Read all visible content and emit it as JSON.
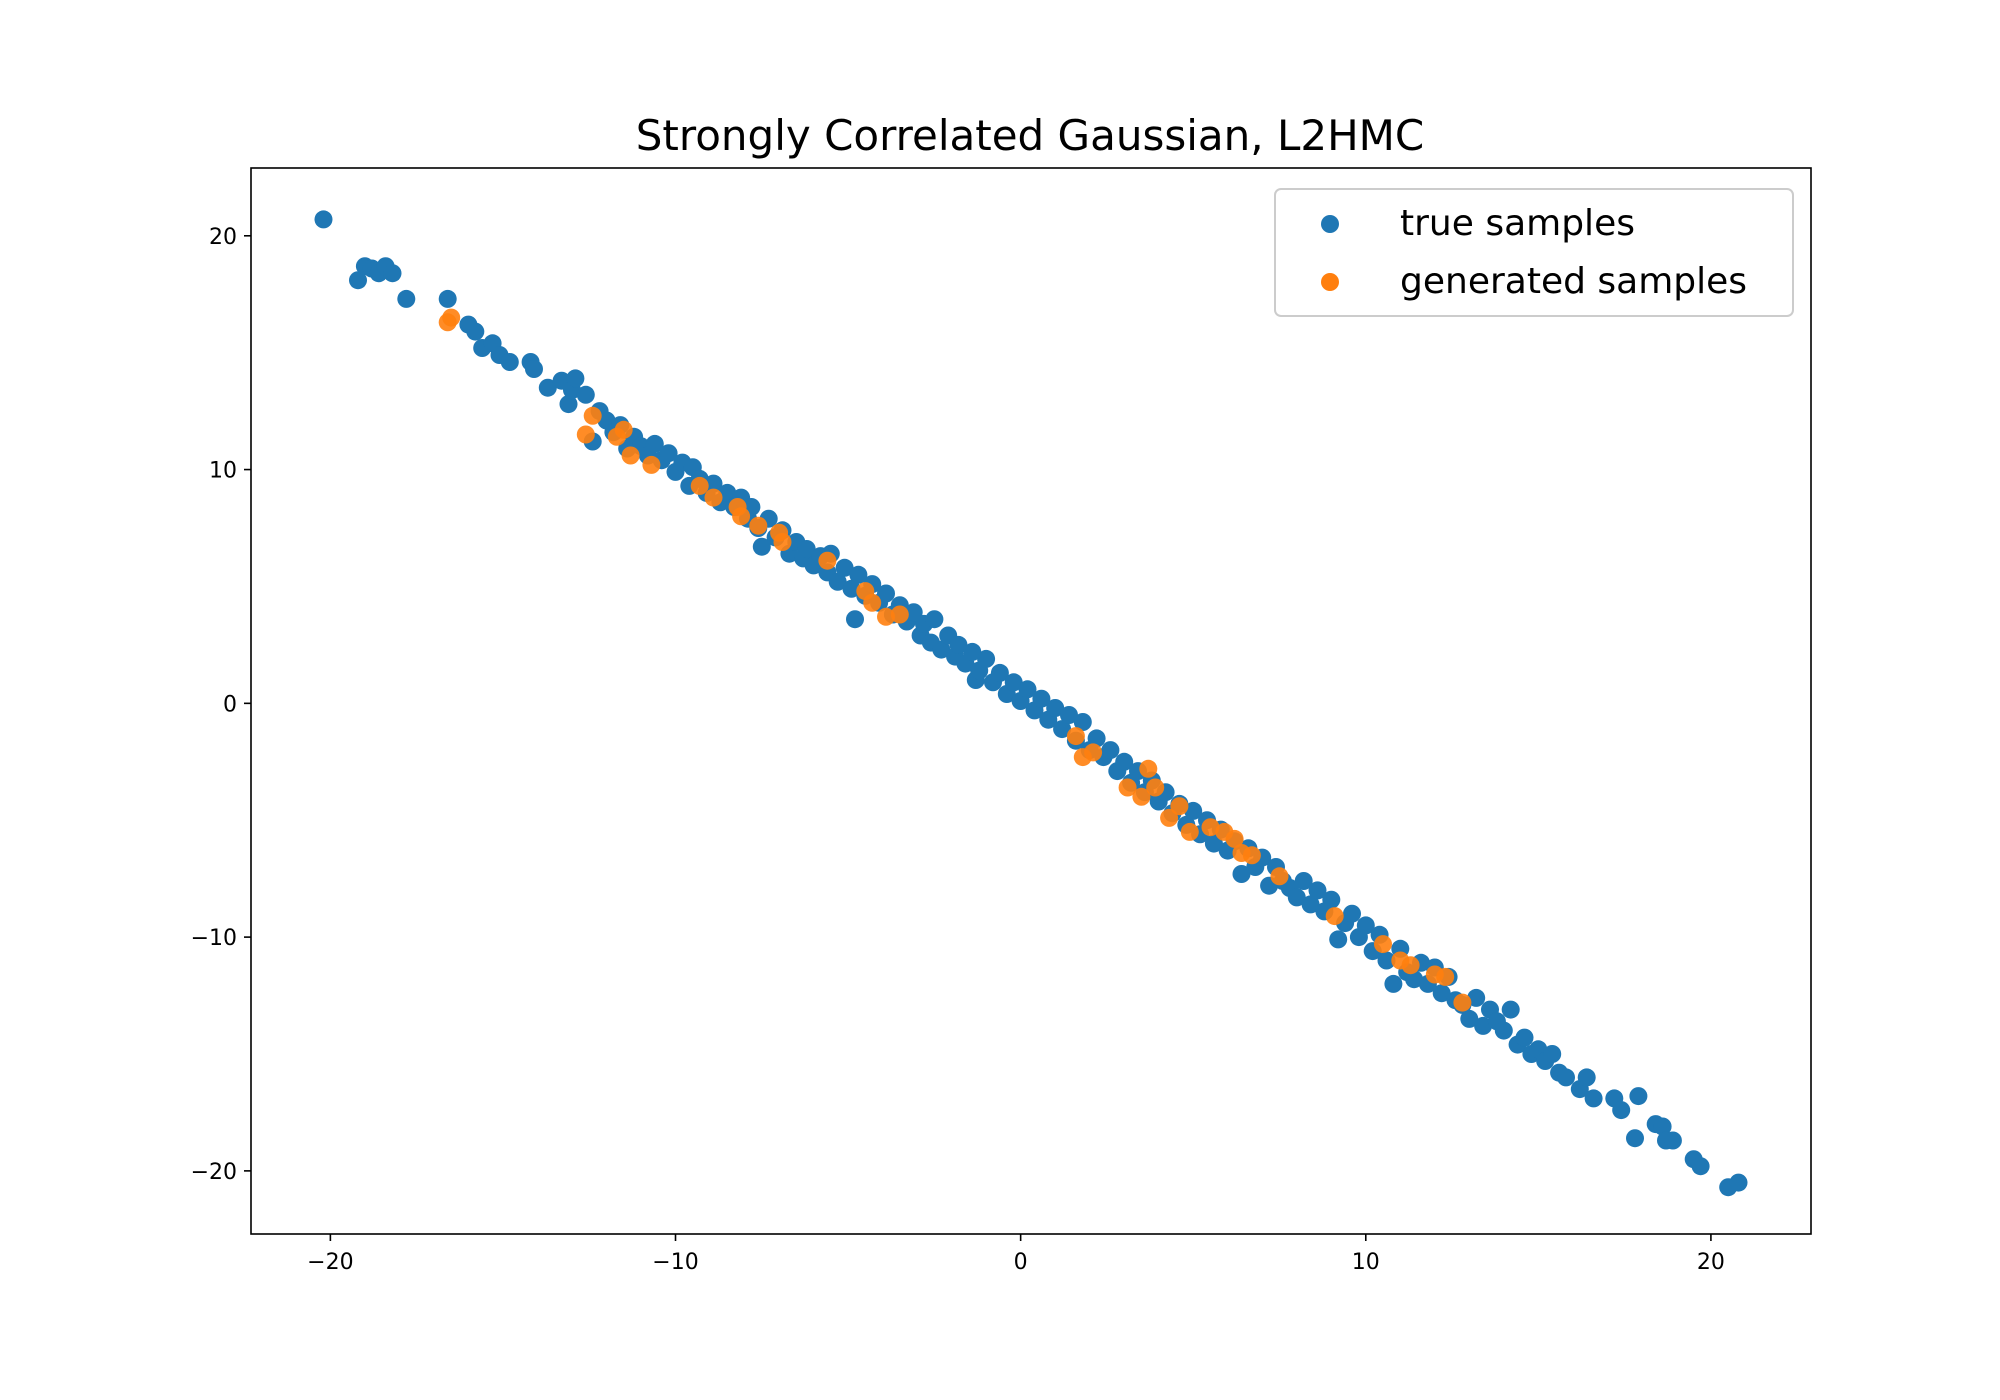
{
  "chart_data": {
    "type": "scatter",
    "title": "Strongly Correlated Gaussian, L2HMC",
    "xlabel": "",
    "ylabel": "",
    "xlim": [
      -22.3,
      22.9
    ],
    "ylim": [
      -22.7,
      22.9
    ],
    "xticks": [
      -20,
      -10,
      0,
      10,
      20
    ],
    "yticks": [
      -20,
      -10,
      0,
      10,
      20
    ],
    "xtick_labels": [
      "−20",
      "−10",
      "0",
      "10",
      "20"
    ],
    "ytick_labels": [
      "−20",
      "−10",
      "0",
      "10",
      "20"
    ],
    "grid": false,
    "legend_position": "top-right",
    "series": [
      {
        "name": "true samples",
        "color": "#1f77b4",
        "points": [
          [
            -20.2,
            20.7
          ],
          [
            -19.2,
            18.1
          ],
          [
            -19.0,
            18.7
          ],
          [
            -18.8,
            18.6
          ],
          [
            -18.6,
            18.4
          ],
          [
            -18.4,
            18.7
          ],
          [
            -18.2,
            18.4
          ],
          [
            -17.8,
            17.3
          ],
          [
            -16.6,
            17.3
          ],
          [
            -16.0,
            16.2
          ],
          [
            -15.8,
            15.9
          ],
          [
            -15.6,
            15.2
          ],
          [
            -15.3,
            15.4
          ],
          [
            -15.1,
            14.9
          ],
          [
            -14.8,
            14.6
          ],
          [
            -14.2,
            14.6
          ],
          [
            -14.1,
            14.3
          ],
          [
            -13.7,
            13.5
          ],
          [
            -13.3,
            13.8
          ],
          [
            -13.1,
            12.8
          ],
          [
            -13.0,
            13.4
          ],
          [
            -12.9,
            13.9
          ],
          [
            -12.6,
            13.2
          ],
          [
            -12.4,
            11.2
          ],
          [
            -12.2,
            12.5
          ],
          [
            -12.0,
            12.1
          ],
          [
            -11.8,
            11.6
          ],
          [
            -11.6,
            11.9
          ],
          [
            -11.4,
            10.9
          ],
          [
            -11.2,
            11.4
          ],
          [
            -11.0,
            11.0
          ],
          [
            -10.8,
            10.6
          ],
          [
            -10.6,
            11.1
          ],
          [
            -10.4,
            10.4
          ],
          [
            -10.2,
            10.7
          ],
          [
            -10.0,
            9.9
          ],
          [
            -9.8,
            10.3
          ],
          [
            -9.6,
            9.3
          ],
          [
            -9.5,
            10.1
          ],
          [
            -9.3,
            9.6
          ],
          [
            -9.1,
            9.0
          ],
          [
            -8.9,
            9.4
          ],
          [
            -8.7,
            8.6
          ],
          [
            -8.5,
            9.0
          ],
          [
            -8.3,
            8.4
          ],
          [
            -8.1,
            8.8
          ],
          [
            -7.9,
            7.9
          ],
          [
            -7.8,
            8.4
          ],
          [
            -7.6,
            7.5
          ],
          [
            -7.5,
            6.7
          ],
          [
            -7.3,
            7.9
          ],
          [
            -7.1,
            7.1
          ],
          [
            -6.9,
            7.4
          ],
          [
            -6.7,
            6.4
          ],
          [
            -6.5,
            6.9
          ],
          [
            -6.3,
            6.2
          ],
          [
            -6.2,
            6.6
          ],
          [
            -6.0,
            5.9
          ],
          [
            -5.8,
            6.3
          ],
          [
            -5.6,
            5.6
          ],
          [
            -5.5,
            6.4
          ],
          [
            -5.3,
            5.2
          ],
          [
            -5.1,
            5.8
          ],
          [
            -4.9,
            4.9
          ],
          [
            -4.8,
            3.6
          ],
          [
            -4.7,
            5.5
          ],
          [
            -4.5,
            4.6
          ],
          [
            -4.3,
            5.1
          ],
          [
            -4.1,
            4.3
          ],
          [
            -3.9,
            4.7
          ],
          [
            -3.7,
            3.8
          ],
          [
            -3.5,
            4.2
          ],
          [
            -3.3,
            3.5
          ],
          [
            -3.1,
            3.9
          ],
          [
            -2.9,
            2.9
          ],
          [
            -2.8,
            3.4
          ],
          [
            -2.6,
            2.6
          ],
          [
            -2.5,
            3.6
          ],
          [
            -2.3,
            2.3
          ],
          [
            -2.1,
            2.9
          ],
          [
            -1.9,
            2.0
          ],
          [
            -1.8,
            2.5
          ],
          [
            -1.6,
            1.7
          ],
          [
            -1.4,
            2.2
          ],
          [
            -1.3,
            1.0
          ],
          [
            -1.2,
            1.4
          ],
          [
            -1.0,
            1.9
          ],
          [
            -0.8,
            0.9
          ],
          [
            -0.6,
            1.3
          ],
          [
            -0.4,
            0.4
          ],
          [
            -0.2,
            0.9
          ],
          [
            0.0,
            0.1
          ],
          [
            0.2,
            0.6
          ],
          [
            0.4,
            -0.3
          ],
          [
            0.6,
            0.2
          ],
          [
            0.8,
            -0.7
          ],
          [
            1.0,
            -0.2
          ],
          [
            1.2,
            -1.1
          ],
          [
            1.4,
            -0.5
          ],
          [
            1.6,
            -1.6
          ],
          [
            1.8,
            -0.8
          ],
          [
            2.0,
            -2.0
          ],
          [
            2.2,
            -1.5
          ],
          [
            2.4,
            -2.3
          ],
          [
            2.6,
            -2.0
          ],
          [
            2.8,
            -2.9
          ],
          [
            3.0,
            -2.5
          ],
          [
            3.2,
            -3.4
          ],
          [
            3.4,
            -2.9
          ],
          [
            3.6,
            -3.8
          ],
          [
            3.8,
            -3.3
          ],
          [
            4.0,
            -4.2
          ],
          [
            4.2,
            -3.8
          ],
          [
            4.4,
            -4.7
          ],
          [
            4.6,
            -4.3
          ],
          [
            4.8,
            -5.2
          ],
          [
            5.0,
            -4.6
          ],
          [
            5.2,
            -5.6
          ],
          [
            5.4,
            -5.0
          ],
          [
            5.6,
            -6.0
          ],
          [
            5.8,
            -5.4
          ],
          [
            6.0,
            -6.3
          ],
          [
            6.2,
            -5.9
          ],
          [
            6.4,
            -7.3
          ],
          [
            6.6,
            -6.2
          ],
          [
            6.8,
            -7.0
          ],
          [
            7.0,
            -6.6
          ],
          [
            7.2,
            -7.8
          ],
          [
            7.4,
            -7.0
          ],
          [
            7.6,
            -7.6
          ],
          [
            7.8,
            -7.9
          ],
          [
            8.0,
            -8.3
          ],
          [
            8.2,
            -7.6
          ],
          [
            8.4,
            -8.6
          ],
          [
            8.6,
            -8.0
          ],
          [
            8.8,
            -8.9
          ],
          [
            9.0,
            -8.4
          ],
          [
            9.2,
            -10.1
          ],
          [
            9.4,
            -9.4
          ],
          [
            9.6,
            -9.0
          ],
          [
            9.8,
            -10.0
          ],
          [
            10.0,
            -9.5
          ],
          [
            10.2,
            -10.6
          ],
          [
            10.4,
            -9.9
          ],
          [
            10.6,
            -11.0
          ],
          [
            10.8,
            -12.0
          ],
          [
            11.0,
            -10.5
          ],
          [
            11.2,
            -11.5
          ],
          [
            11.4,
            -11.8
          ],
          [
            11.6,
            -11.1
          ],
          [
            11.8,
            -12.0
          ],
          [
            12.0,
            -11.3
          ],
          [
            12.2,
            -12.4
          ],
          [
            12.4,
            -11.7
          ],
          [
            12.6,
            -12.7
          ],
          [
            12.8,
            -12.9
          ],
          [
            13.0,
            -13.5
          ],
          [
            13.2,
            -12.6
          ],
          [
            13.4,
            -13.8
          ],
          [
            13.6,
            -13.1
          ],
          [
            13.8,
            -13.6
          ],
          [
            14.0,
            -14.0
          ],
          [
            14.2,
            -13.1
          ],
          [
            14.4,
            -14.6
          ],
          [
            14.6,
            -14.3
          ],
          [
            14.8,
            -15.0
          ],
          [
            15.0,
            -14.8
          ],
          [
            15.2,
            -15.3
          ],
          [
            15.4,
            -15.0
          ],
          [
            15.6,
            -15.8
          ],
          [
            15.8,
            -16.0
          ],
          [
            16.2,
            -16.5
          ],
          [
            16.4,
            -16.0
          ],
          [
            16.6,
            -16.9
          ],
          [
            17.2,
            -16.9
          ],
          [
            17.4,
            -17.4
          ],
          [
            17.8,
            -18.6
          ],
          [
            17.9,
            -16.8
          ],
          [
            18.4,
            -18.0
          ],
          [
            18.6,
            -18.1
          ],
          [
            18.7,
            -18.7
          ],
          [
            18.9,
            -18.7
          ],
          [
            19.5,
            -19.5
          ],
          [
            19.7,
            -19.8
          ],
          [
            20.5,
            -20.7
          ],
          [
            20.8,
            -20.5
          ]
        ]
      },
      {
        "name": "generated samples",
        "color": "#ff7f0e",
        "points": [
          [
            -16.6,
            16.3
          ],
          [
            -16.5,
            16.5
          ],
          [
            -12.6,
            11.5
          ],
          [
            -12.4,
            12.3
          ],
          [
            -11.7,
            11.4
          ],
          [
            -11.5,
            11.7
          ],
          [
            -11.3,
            10.6
          ],
          [
            -10.7,
            10.2
          ],
          [
            -9.3,
            9.3
          ],
          [
            -8.9,
            8.8
          ],
          [
            -8.2,
            8.4
          ],
          [
            -8.1,
            8.0
          ],
          [
            -7.6,
            7.6
          ],
          [
            -7.0,
            7.3
          ],
          [
            -6.9,
            6.9
          ],
          [
            -5.6,
            6.1
          ],
          [
            -4.5,
            4.8
          ],
          [
            -4.3,
            4.3
          ],
          [
            -3.9,
            3.7
          ],
          [
            -3.5,
            3.8
          ],
          [
            1.6,
            -1.4
          ],
          [
            1.8,
            -2.3
          ],
          [
            2.1,
            -2.1
          ],
          [
            3.1,
            -3.6
          ],
          [
            3.5,
            -4.0
          ],
          [
            3.7,
            -2.8
          ],
          [
            3.9,
            -3.6
          ],
          [
            4.3,
            -4.9
          ],
          [
            4.6,
            -4.4
          ],
          [
            4.9,
            -5.5
          ],
          [
            5.5,
            -5.3
          ],
          [
            5.9,
            -5.5
          ],
          [
            6.2,
            -5.8
          ],
          [
            6.4,
            -6.4
          ],
          [
            6.7,
            -6.5
          ],
          [
            7.5,
            -7.4
          ],
          [
            9.1,
            -9.1
          ],
          [
            10.5,
            -10.3
          ],
          [
            11.0,
            -11.0
          ],
          [
            11.3,
            -11.2
          ],
          [
            12.0,
            -11.6
          ],
          [
            12.3,
            -11.7
          ],
          [
            12.8,
            -12.8
          ]
        ]
      }
    ]
  }
}
